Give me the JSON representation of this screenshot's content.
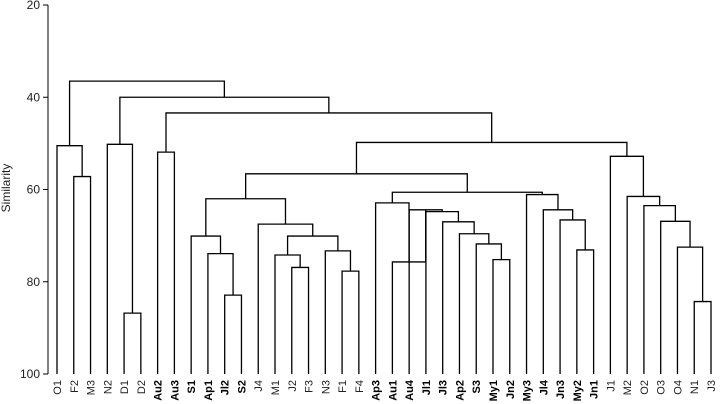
{
  "chart_data": {
    "type": "dendrogram",
    "ylabel": "Similarity",
    "ylim": [
      20,
      100
    ],
    "yticks": [
      20,
      40,
      60,
      80,
      100
    ],
    "y_inverted": true,
    "grid": false,
    "leaves": [
      {
        "label": "O1",
        "bold": false
      },
      {
        "label": "F2",
        "bold": false
      },
      {
        "label": "M3",
        "bold": false
      },
      {
        "label": "N2",
        "bold": false
      },
      {
        "label": "D1",
        "bold": false
      },
      {
        "label": "D2",
        "bold": false
      },
      {
        "label": "Au2",
        "bold": true
      },
      {
        "label": "Au3",
        "bold": true
      },
      {
        "label": "S1",
        "bold": true
      },
      {
        "label": "Ap1",
        "bold": true
      },
      {
        "label": "Jl2",
        "bold": true
      },
      {
        "label": "S2",
        "bold": true
      },
      {
        "label": "J4",
        "bold": false
      },
      {
        "label": "M1",
        "bold": false
      },
      {
        "label": "J2",
        "bold": false
      },
      {
        "label": "F3",
        "bold": false
      },
      {
        "label": "N3",
        "bold": false
      },
      {
        "label": "F1",
        "bold": false
      },
      {
        "label": "F4",
        "bold": false
      },
      {
        "label": "Ap3",
        "bold": true
      },
      {
        "label": "Au1",
        "bold": true
      },
      {
        "label": "Au4",
        "bold": true
      },
      {
        "label": "Jl1",
        "bold": true
      },
      {
        "label": "Jl3",
        "bold": true
      },
      {
        "label": "Ap2",
        "bold": true
      },
      {
        "label": "S3",
        "bold": true
      },
      {
        "label": "My1",
        "bold": true
      },
      {
        "label": "Jn2",
        "bold": true
      },
      {
        "label": "My3",
        "bold": true
      },
      {
        "label": "Jl4",
        "bold": true
      },
      {
        "label": "Jn3",
        "bold": true
      },
      {
        "label": "My2",
        "bold": true
      },
      {
        "label": "Jn1",
        "bold": true
      },
      {
        "label": "J1",
        "bold": false
      },
      {
        "label": "M2",
        "bold": false
      },
      {
        "label": "O2",
        "bold": false
      },
      {
        "label": "O3",
        "bold": false
      },
      {
        "label": "O4",
        "bold": false
      },
      {
        "label": "N1",
        "bold": false
      },
      {
        "label": "J3",
        "bold": false
      }
    ],
    "merges": [
      {
        "id": "c1",
        "children": [
          "F2",
          "M3"
        ],
        "similarity": 57.2
      },
      {
        "id": "c2",
        "children": [
          "O1",
          "c1"
        ],
        "similarity": 50.5
      },
      {
        "id": "c3",
        "children": [
          "D1",
          "D2"
        ],
        "similarity": 86.8
      },
      {
        "id": "c4",
        "children": [
          "N2",
          "c3"
        ],
        "similarity": 50.2
      },
      {
        "id": "c5",
        "children": [
          "Au2",
          "Au3"
        ],
        "similarity": 51.9
      },
      {
        "id": "c6",
        "children": [
          "Jl2",
          "S2"
        ],
        "similarity": 82.9
      },
      {
        "id": "c7",
        "children": [
          "Ap1",
          "c6"
        ],
        "similarity": 73.9
      },
      {
        "id": "c8",
        "children": [
          "S1",
          "c7"
        ],
        "similarity": 70.1
      },
      {
        "id": "c9",
        "children": [
          "J2",
          "F3"
        ],
        "similarity": 76.9
      },
      {
        "id": "c10",
        "children": [
          "M1",
          "c9"
        ],
        "similarity": 74.2
      },
      {
        "id": "c11",
        "children": [
          "F1",
          "F4"
        ],
        "similarity": 77.7
      },
      {
        "id": "c12",
        "children": [
          "N3",
          "c11"
        ],
        "similarity": 73.3
      },
      {
        "id": "c13",
        "children": [
          "c10",
          "c12"
        ],
        "similarity": 70.1
      },
      {
        "id": "c14",
        "children": [
          "J4",
          "c13"
        ],
        "similarity": 67.5
      },
      {
        "id": "c15",
        "children": [
          "c8",
          "c14"
        ],
        "similarity": 62.0
      },
      {
        "id": "c16",
        "children": [
          "My1",
          "Jn2"
        ],
        "similarity": 75.2
      },
      {
        "id": "c17",
        "children": [
          "S3",
          "c16"
        ],
        "similarity": 71.8
      },
      {
        "id": "c18",
        "children": [
          "Ap2",
          "c17"
        ],
        "similarity": 69.6
      },
      {
        "id": "c19",
        "children": [
          "Jl3",
          "c18"
        ],
        "similarity": 67.0
      },
      {
        "id": "c20",
        "children": [
          "Jl1",
          "c19"
        ],
        "similarity": 64.8
      },
      {
        "id": "c21",
        "children": [
          "Au4",
          "c20"
        ],
        "similarity": 64.4
      },
      {
        "id": "c22",
        "children": [
          "Au1",
          "c21"
        ],
        "similarity": 75.7
      },
      {
        "id": "c23",
        "children": [
          "Ap3",
          "c22"
        ],
        "similarity": 62.9
      },
      {
        "id": "c24",
        "children": [
          "My2",
          "Jn1"
        ],
        "similarity": 73.1
      },
      {
        "id": "c25",
        "children": [
          "Jn3",
          "c24"
        ],
        "similarity": 66.6
      },
      {
        "id": "c26",
        "children": [
          "Jl4",
          "c25"
        ],
        "similarity": 64.4
      },
      {
        "id": "c27",
        "children": [
          "My3",
          "c26"
        ],
        "similarity": 61.1
      },
      {
        "id": "c28",
        "children": [
          "c23",
          "c27"
        ],
        "similarity": 60.6
      },
      {
        "id": "c29",
        "children": [
          "c15",
          "c28"
        ],
        "similarity": 56.6
      },
      {
        "id": "c30",
        "children": [
          "N1",
          "J3"
        ],
        "similarity": 84.3
      },
      {
        "id": "c31",
        "children": [
          "O4",
          "c30"
        ],
        "similarity": 72.5
      },
      {
        "id": "c32",
        "children": [
          "O3",
          "c31"
        ],
        "similarity": 66.9
      },
      {
        "id": "c33",
        "children": [
          "O2",
          "c32"
        ],
        "similarity": 63.5
      },
      {
        "id": "c34",
        "children": [
          "M2",
          "c33"
        ],
        "similarity": 61.5
      },
      {
        "id": "c35",
        "children": [
          "J1",
          "c34"
        ],
        "similarity": 52.8
      },
      {
        "id": "c36",
        "children": [
          "c29",
          "c35"
        ],
        "similarity": 49.8
      },
      {
        "id": "c37",
        "children": [
          "c5",
          "c36"
        ],
        "similarity": 43.4
      },
      {
        "id": "c38",
        "children": [
          "c4",
          "c37"
        ],
        "similarity": 40.0
      },
      {
        "id": "c39",
        "children": [
          "c2",
          "c38"
        ],
        "similarity": 36.5
      }
    ]
  }
}
